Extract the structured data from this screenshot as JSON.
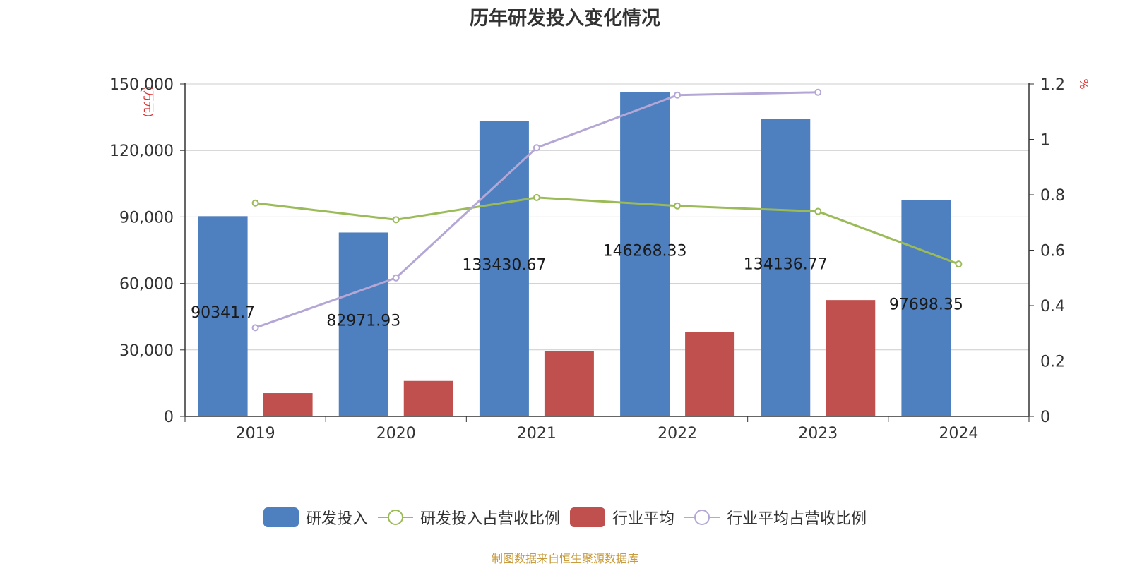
{
  "chart_data": {
    "type": "bar",
    "title": "历年研发投入变化情况",
    "categories": [
      "2019",
      "2020",
      "2021",
      "2022",
      "2023",
      "2024"
    ],
    "left_axis": {
      "label": "(万元)",
      "ylim": [
        0,
        150000
      ],
      "ticks": [
        "0",
        "30,000",
        "60,000",
        "90,000",
        "120,000",
        "150,000"
      ],
      "tick_values": [
        0,
        30000,
        60000,
        90000,
        120000,
        150000
      ]
    },
    "right_axis": {
      "label": "%",
      "ylim": [
        0,
        1.2
      ],
      "ticks": [
        "0",
        "0.2",
        "0.4",
        "0.6",
        "0.8",
        "1",
        "1.2"
      ],
      "tick_values": [
        0,
        0.2,
        0.4,
        0.6,
        0.8,
        1.0,
        1.2
      ]
    },
    "grid": true,
    "legend_position": "bottom-center",
    "series": [
      {
        "name": "研发投入",
        "kind": "bar",
        "axis": "left",
        "color": "#4e7fbe",
        "values": [
          90341.7,
          82971.93,
          133430.67,
          146268.33,
          134136.77,
          97698.35
        ],
        "labels": [
          "90341.7",
          "82971.93",
          "133430.67",
          "146268.33",
          "134136.77",
          "97698.35"
        ]
      },
      {
        "name": "研发投入占营收比例",
        "kind": "line",
        "axis": "right",
        "color": "#9bbb59",
        "values": [
          0.77,
          0.71,
          0.79,
          0.76,
          0.74,
          0.55
        ]
      },
      {
        "name": "行业平均",
        "kind": "bar",
        "axis": "left",
        "color": "#c0504d",
        "values": [
          10500,
          16000,
          29500,
          38000,
          52500,
          null
        ]
      },
      {
        "name": "行业平均占营收比例",
        "kind": "line",
        "axis": "right",
        "color": "#b4a7d6",
        "values": [
          0.32,
          0.5,
          0.97,
          1.16,
          1.17,
          null
        ]
      }
    ]
  },
  "source_note": "制图数据来自恒生聚源数据库"
}
